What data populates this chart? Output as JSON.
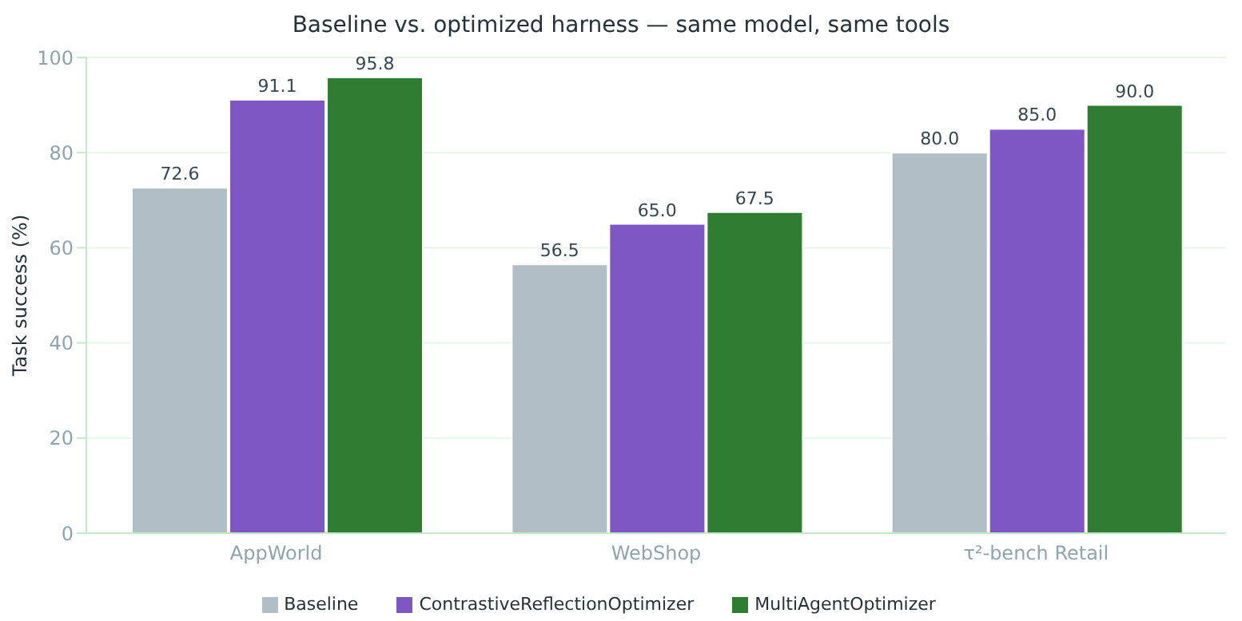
{
  "chart_data": {
    "type": "bar",
    "title": "Baseline vs. optimized harness — same model, same tools",
    "ylabel": "Task success (%)",
    "categories": [
      "AppWorld",
      "WebShop",
      "τ²-bench Retail"
    ],
    "series": [
      {
        "name": "Baseline",
        "color": "#b0bec5",
        "values": [
          72.6,
          56.5,
          80.0
        ],
        "value_labels": [
          "72.6",
          "56.5",
          "80.0"
        ]
      },
      {
        "name": "ContrastiveReflectionOptimizer",
        "color": "#7e57c2",
        "values": [
          91.1,
          65.0,
          85.0
        ],
        "value_labels": [
          "91.1",
          "65.0",
          "85.0"
        ]
      },
      {
        "name": "MultiAgentOptimizer",
        "color": "#2e7d32",
        "values": [
          95.8,
          67.5,
          90.0
        ],
        "value_labels": [
          "95.8",
          "67.5",
          "90.0"
        ]
      }
    ],
    "ylim": [
      0,
      100
    ],
    "yticks": [
      0,
      20,
      40,
      60,
      80,
      100
    ],
    "grid": "y",
    "legend": "bottom"
  }
}
